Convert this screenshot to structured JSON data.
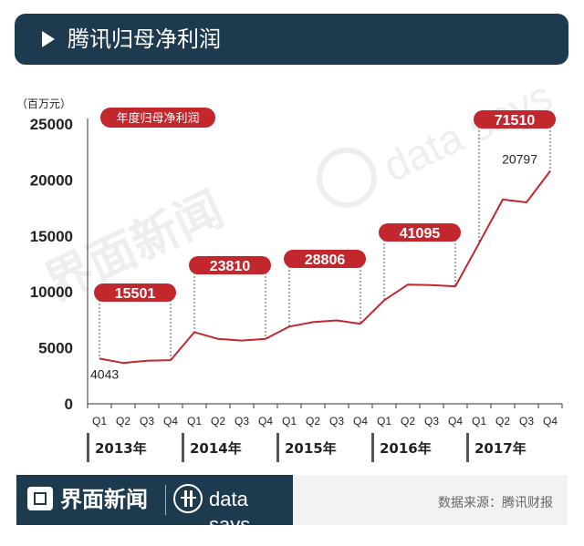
{
  "header": {
    "title": "腾讯归母净利润"
  },
  "footer": {
    "brand": "界面新闻",
    "brand_en": "data says",
    "source": "数据来源：腾讯财报"
  },
  "watermark": {
    "cn": "界面新闻",
    "en": "data says"
  },
  "colors": {
    "accent": "#c1272d",
    "navy": "#1e3a4f",
    "year_bar": "#555555"
  },
  "chart_data": {
    "type": "line",
    "unit_label": "（百万元）",
    "legend_badge": "年度归母净利润",
    "ylim": [
      0,
      25000
    ],
    "y_ticks": [
      "0",
      "5000",
      "10000",
      "15000",
      "20000",
      "25000"
    ],
    "x": [
      "Q1",
      "Q2",
      "Q3",
      "Q4",
      "Q1",
      "Q2",
      "Q3",
      "Q4",
      "Q1",
      "Q2",
      "Q3",
      "Q4",
      "Q1",
      "Q2",
      "Q3",
      "Q4",
      "Q1",
      "Q2",
      "Q3",
      "Q4"
    ],
    "series": [
      {
        "values": [
          4043,
          3650,
          3850,
          3900,
          6400,
          5800,
          5650,
          5800,
          6900,
          7300,
          7450,
          7150,
          9250,
          10650,
          10600,
          10500,
          14350,
          18250,
          18000,
          20797
        ]
      }
    ],
    "point_labels": [
      {
        "index": 0,
        "text": "4043"
      },
      {
        "index": 19,
        "text": "20797"
      }
    ],
    "years": [
      {
        "label": "2013年",
        "annual": "15501",
        "annual_value": 15501
      },
      {
        "label": "2014年",
        "annual": "23810",
        "annual_value": 23810
      },
      {
        "label": "2015年",
        "annual": "28806",
        "annual_value": 28806
      },
      {
        "label": "2016年",
        "annual": "41095",
        "annual_value": 41095
      },
      {
        "label": "2017年",
        "annual": "71510",
        "annual_value": 71510
      }
    ]
  }
}
